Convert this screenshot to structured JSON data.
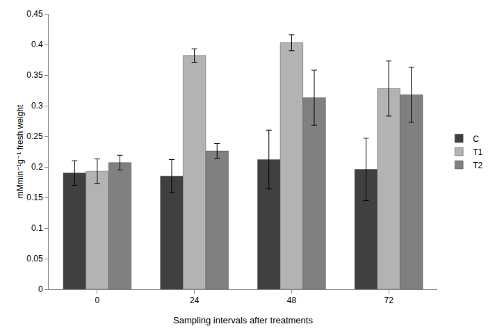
{
  "chart_data": {
    "type": "bar",
    "x_label": "Sampling intervals after treatments",
    "y_label": "mMmin⁻¹g⁻¹ fresh weight",
    "categories": [
      "0",
      "24",
      "48",
      "72"
    ],
    "series": [
      {
        "name": "C",
        "color": "#404040",
        "values": [
          0.19,
          0.185,
          0.212,
          0.196
        ],
        "errors": [
          0.02,
          0.027,
          0.048,
          0.051
        ]
      },
      {
        "name": "T1",
        "color": "#b3b3b3",
        "values": [
          0.193,
          0.382,
          0.403,
          0.328
        ],
        "errors": [
          0.02,
          0.011,
          0.013,
          0.045
        ]
      },
      {
        "name": "T2",
        "color": "#808080",
        "values": [
          0.207,
          0.226,
          0.313,
          0.318
        ],
        "errors": [
          0.012,
          0.012,
          0.045,
          0.045
        ]
      }
    ],
    "ylim": [
      0,
      0.45
    ],
    "yticks": [
      0,
      0.05,
      0.1,
      0.15,
      0.2,
      0.25,
      0.3,
      0.35,
      0.4,
      0.45
    ],
    "grid": false,
    "legend": "right"
  }
}
